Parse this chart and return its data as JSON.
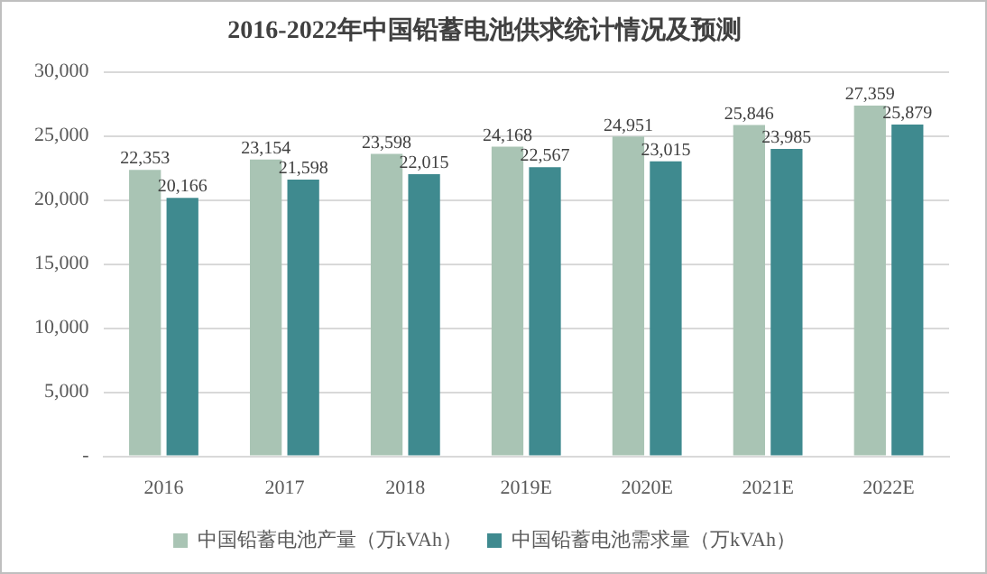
{
  "chart_data": {
    "type": "bar",
    "title": "2016-2022年中国铅蓄电池供求统计情况及预测",
    "categories": [
      "2016",
      "2017",
      "2018",
      "2019E",
      "2020E",
      "2021E",
      "2022E"
    ],
    "series": [
      {
        "name": "中国铅蓄电池产量（万kVAh）",
        "color": "#a9c4b4",
        "values": [
          22353,
          23154,
          23598,
          24168,
          24951,
          25846,
          27359
        ],
        "value_labels": [
          "22,353",
          "23,154",
          "23,598",
          "24,168",
          "24,951",
          "25,846",
          "27,359"
        ]
      },
      {
        "name": "中国铅蓄电池需求量（万kVAh）",
        "color": "#3f8a8f",
        "values": [
          20166,
          21598,
          22015,
          22567,
          23015,
          23985,
          25879
        ],
        "value_labels": [
          "20,166",
          "21,598",
          "22,015",
          "22,567",
          "23,015",
          "23,985",
          "25,879"
        ]
      }
    ],
    "ylim": [
      0,
      30000
    ],
    "yticks": [
      {
        "value": 0,
        "label": "-"
      },
      {
        "value": 5000,
        "label": "5,000"
      },
      {
        "value": 10000,
        "label": "10,000"
      },
      {
        "value": 15000,
        "label": "15,000"
      },
      {
        "value": 20000,
        "label": "20,000"
      },
      {
        "value": 25000,
        "label": "25,000"
      },
      {
        "value": 30000,
        "label": "30,000"
      }
    ],
    "grid": "y",
    "legend": "bottom"
  }
}
